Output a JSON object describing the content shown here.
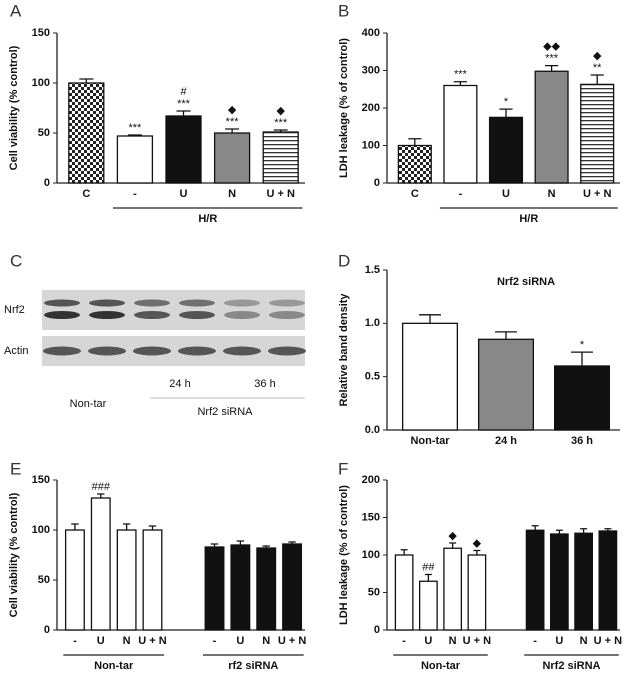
{
  "chart_data": [
    {
      "type": "bar",
      "panel": "A",
      "ylabel": "Cell viability (% control)",
      "categories": [
        "C",
        "-",
        "U",
        "N",
        "U + N"
      ],
      "values": [
        100,
        47,
        67,
        50,
        51
      ],
      "errors": [
        4,
        1,
        5,
        4,
        2
      ],
      "annotations": [
        null,
        [
          "***"
        ],
        [
          "#",
          "***"
        ],
        [
          "◆",
          "***"
        ],
        [
          "◆",
          "***"
        ]
      ],
      "fills": [
        "checker",
        "white",
        "black",
        "gray",
        "stripes"
      ],
      "ylim": [
        0,
        150
      ],
      "yticks": [
        0,
        50,
        100,
        150
      ],
      "group_labels": [
        "H/R"
      ]
    },
    {
      "type": "bar",
      "panel": "B",
      "ylabel": "LDH leakage (% of control)",
      "categories": [
        "C",
        "-",
        "U",
        "N",
        "U + N"
      ],
      "values": [
        100,
        260,
        175,
        298,
        263
      ],
      "errors": [
        18,
        10,
        22,
        15,
        25
      ],
      "annotations": [
        null,
        [
          "***"
        ],
        [
          "*"
        ],
        [
          "◆◆",
          "***"
        ],
        [
          "◆",
          "**"
        ]
      ],
      "fills": [
        "checker",
        "white",
        "black",
        "gray",
        "stripes"
      ],
      "ylim": [
        0,
        400
      ],
      "yticks": [
        0,
        100,
        200,
        300,
        400
      ],
      "group_labels": [
        "H/R"
      ]
    },
    {
      "type": "blot",
      "panel": "C",
      "row_labels": [
        "Nrf2",
        "Actin"
      ],
      "lane_labels": [
        "Non-tar",
        "24 h",
        "36 h"
      ],
      "group_labels": [
        "Nrf2 siRNA"
      ]
    },
    {
      "type": "bar",
      "panel": "D",
      "title": "Nrf2 siRNA",
      "ylabel": "Relative band density",
      "categories": [
        "Non-tar",
        "24 h",
        "36 h"
      ],
      "values": [
        1.0,
        0.85,
        0.6
      ],
      "errors": [
        0.08,
        0.07,
        0.13
      ],
      "annotations": [
        null,
        null,
        [
          "*"
        ]
      ],
      "fills": [
        "white",
        "gray",
        "black"
      ],
      "ylim": [
        0,
        1.5
      ],
      "yticks": [
        {
          "value": 0,
          "label": "0.0"
        },
        0.5,
        {
          "value": 1,
          "label": "1.0"
        },
        1.5
      ]
    },
    {
      "type": "bar",
      "panel": "E",
      "ylabel": "Cell viability (% control)",
      "categories": [
        "-",
        "U",
        "N",
        "U + N",
        "-",
        "U",
        "N",
        "U + N"
      ],
      "values": [
        100,
        132,
        100,
        100,
        83,
        85,
        82,
        86
      ],
      "errors": [
        6,
        4,
        6,
        4,
        3,
        4,
        2,
        2
      ],
      "annotations": [
        null,
        [
          "###"
        ],
        null,
        null,
        null,
        null,
        null,
        null
      ],
      "fills": [
        "white",
        "white",
        "white",
        "white",
        "black",
        "black",
        "black",
        "black"
      ],
      "ylim": [
        0,
        150
      ],
      "yticks": [
        0,
        50,
        100,
        150
      ],
      "group_labels": [
        "Non-tar",
        "rf2 siRNA"
      ]
    },
    {
      "type": "bar",
      "panel": "F",
      "ylabel": "LDH leakage (% of control)",
      "categories": [
        "-",
        "U",
        "N",
        "U + N",
        "-",
        "U",
        "N",
        "U + N"
      ],
      "values": [
        100,
        65,
        109,
        100,
        133,
        128,
        129,
        132
      ],
      "errors": [
        7,
        9,
        7,
        6,
        6,
        5,
        6,
        3
      ],
      "annotations": [
        null,
        [
          "##"
        ],
        [
          "◆"
        ],
        [
          "◆"
        ],
        null,
        null,
        null,
        null
      ],
      "fills": [
        "white",
        "white",
        "white",
        "white",
        "black",
        "black",
        "black",
        "black"
      ],
      "ylim": [
        0,
        200
      ],
      "yticks": [
        0,
        50,
        100,
        150,
        200
      ],
      "group_labels": [
        "Non-tar",
        "Nrf2 siRNA"
      ]
    }
  ]
}
